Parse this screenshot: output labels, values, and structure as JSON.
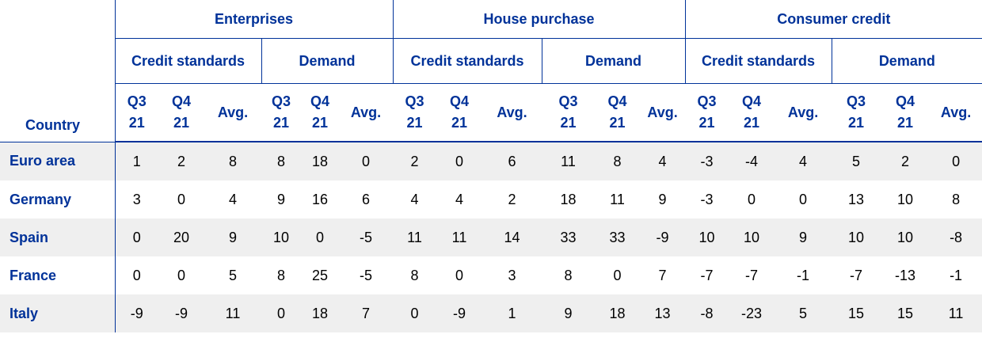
{
  "table": {
    "country_header": "Country",
    "groups": [
      {
        "title": "Enterprises",
        "subgroups": [
          {
            "title": "Credit standards",
            "columns": [
              "Q3 21",
              "Q4 21",
              "Avg."
            ]
          },
          {
            "title": "Demand",
            "columns": [
              "Q3 21",
              "Q4 21",
              "Avg."
            ]
          }
        ]
      },
      {
        "title": "House purchase",
        "subgroups": [
          {
            "title": "Credit standards",
            "columns": [
              "Q3 21",
              "Q4 21",
              "Avg."
            ]
          },
          {
            "title": "Demand",
            "columns": [
              "Q3 21",
              "Q4 21",
              "Avg."
            ]
          }
        ]
      },
      {
        "title": "Consumer credit",
        "subgroups": [
          {
            "title": "Credit standards",
            "columns": [
              "Q3 21",
              "Q4 21",
              "Avg."
            ]
          },
          {
            "title": "Demand",
            "columns": [
              "Q3 21",
              "Q4 21",
              "Avg."
            ]
          }
        ]
      }
    ],
    "rows": [
      {
        "country": "Euro area",
        "values": [
          1,
          2,
          8,
          8,
          18,
          0,
          2,
          0,
          6,
          11,
          8,
          4,
          -3,
          -4,
          4,
          5,
          2,
          0
        ]
      },
      {
        "country": "Germany",
        "values": [
          3,
          0,
          4,
          9,
          16,
          6,
          4,
          4,
          2,
          18,
          11,
          9,
          -3,
          0,
          0,
          13,
          10,
          8
        ]
      },
      {
        "country": "Spain",
        "values": [
          0,
          20,
          9,
          10,
          0,
          -5,
          11,
          11,
          14,
          33,
          33,
          -9,
          10,
          10,
          9,
          10,
          10,
          -8
        ]
      },
      {
        "country": "France",
        "values": [
          0,
          0,
          5,
          8,
          25,
          -5,
          8,
          0,
          3,
          8,
          0,
          7,
          -7,
          -7,
          -1,
          -7,
          -13,
          -1
        ]
      },
      {
        "country": "Italy",
        "values": [
          -9,
          -9,
          11,
          0,
          18,
          7,
          0,
          -9,
          1,
          9,
          18,
          13,
          -8,
          -23,
          5,
          15,
          15,
          11
        ]
      }
    ]
  }
}
